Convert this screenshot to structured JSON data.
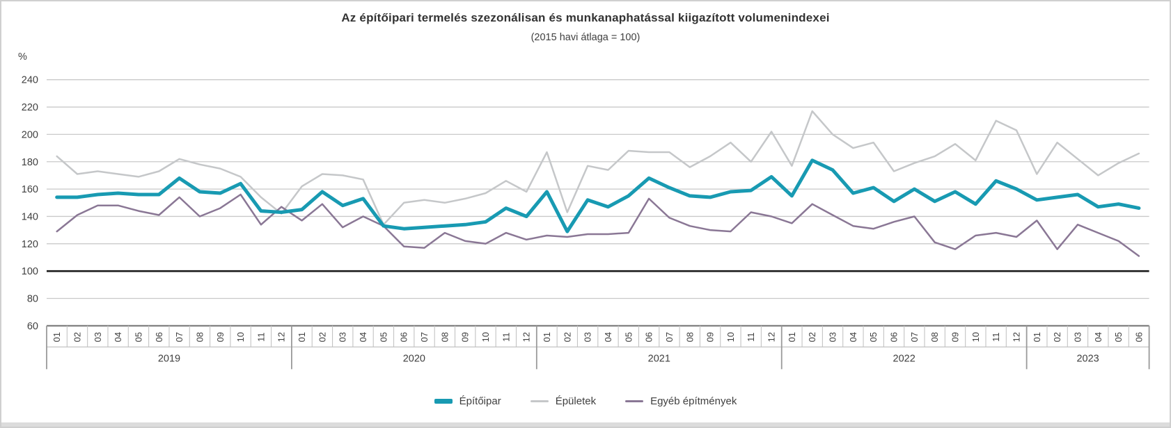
{
  "title": "Az építőipari termelés szezonálisan és munkanaphatással kiigazított volumenindexei",
  "subtitle": "(2015 havi átlaga = 100)",
  "chart_data": {
    "type": "line",
    "title": "Az építőipari termelés szezonálisan és munkanaphatással kiigazított volumenindexei",
    "subtitle": "(2015 havi átlaga = 100)",
    "unit_label": "%",
    "ylim": [
      60,
      240
    ],
    "ytick_step": 20,
    "yticks": [
      240,
      220,
      200,
      180,
      160,
      140,
      120,
      100,
      80,
      60
    ],
    "baseline_value": 100,
    "grid": true,
    "legend_position": "bottom",
    "grid_color": "#c9c9c9",
    "baseline_color": "#1a1a1a",
    "axis_border_color": "#808080",
    "cell_border_color": "#c3c3c3",
    "year_border_color": "#9a9a9a",
    "text_color": "#404040",
    "years": [
      {
        "label": "2019",
        "months": 12
      },
      {
        "label": "2020",
        "months": 12
      },
      {
        "label": "2021",
        "months": 12
      },
      {
        "label": "2022",
        "months": 12
      },
      {
        "label": "2023",
        "months": 6
      }
    ],
    "month_labels": [
      "01",
      "02",
      "03",
      "04",
      "05",
      "06",
      "07",
      "08",
      "09",
      "10",
      "11",
      "12",
      "01",
      "02",
      "03",
      "04",
      "05",
      "06",
      "07",
      "08",
      "09",
      "10",
      "11",
      "12",
      "01",
      "02",
      "03",
      "04",
      "05",
      "06",
      "07",
      "08",
      "09",
      "10",
      "11",
      "12",
      "01",
      "02",
      "03",
      "04",
      "05",
      "06",
      "07",
      "08",
      "09",
      "10",
      "11",
      "12",
      "01",
      "02",
      "03",
      "04",
      "05",
      "06"
    ],
    "series": [
      {
        "name": "Építőipar",
        "color": "#189ab2",
        "stroke_width": 5,
        "values": [
          154,
          154,
          156,
          157,
          156,
          156,
          168,
          158,
          157,
          164,
          144,
          143,
          145,
          158,
          148,
          153,
          133,
          131,
          132,
          133,
          134,
          136,
          146,
          140,
          158,
          129,
          152,
          147,
          155,
          168,
          161,
          155,
          154,
          158,
          159,
          169,
          155,
          181,
          174,
          157,
          161,
          151,
          160,
          151,
          158,
          149,
          166,
          160,
          152,
          154,
          156,
          147,
          149,
          146
        ]
      },
      {
        "name": "Épületek",
        "color": "#c5c7c9",
        "stroke_width": 2.5,
        "values": [
          184,
          171,
          173,
          171,
          169,
          173,
          182,
          178,
          175,
          169,
          154,
          142,
          162,
          171,
          170,
          167,
          134,
          150,
          152,
          150,
          153,
          157,
          166,
          158,
          187,
          143,
          177,
          174,
          188,
          187,
          187,
          176,
          184,
          194,
          180,
          202,
          177,
          217,
          200,
          190,
          194,
          173,
          179,
          184,
          193,
          181,
          210,
          203,
          171,
          194,
          182,
          170,
          179,
          186
        ]
      },
      {
        "name": "Egyéb építmények",
        "color": "#8a7795",
        "stroke_width": 2.5,
        "values": [
          129,
          141,
          148,
          148,
          144,
          141,
          154,
          140,
          146,
          156,
          134,
          147,
          137,
          149,
          132,
          140,
          133,
          118,
          117,
          128,
          122,
          120,
          128,
          123,
          126,
          125,
          127,
          127,
          128,
          153,
          139,
          133,
          130,
          129,
          143,
          140,
          135,
          149,
          141,
          133,
          131,
          136,
          140,
          121,
          116,
          126,
          128,
          125,
          137,
          116,
          134,
          128,
          122,
          111
        ]
      }
    ]
  }
}
